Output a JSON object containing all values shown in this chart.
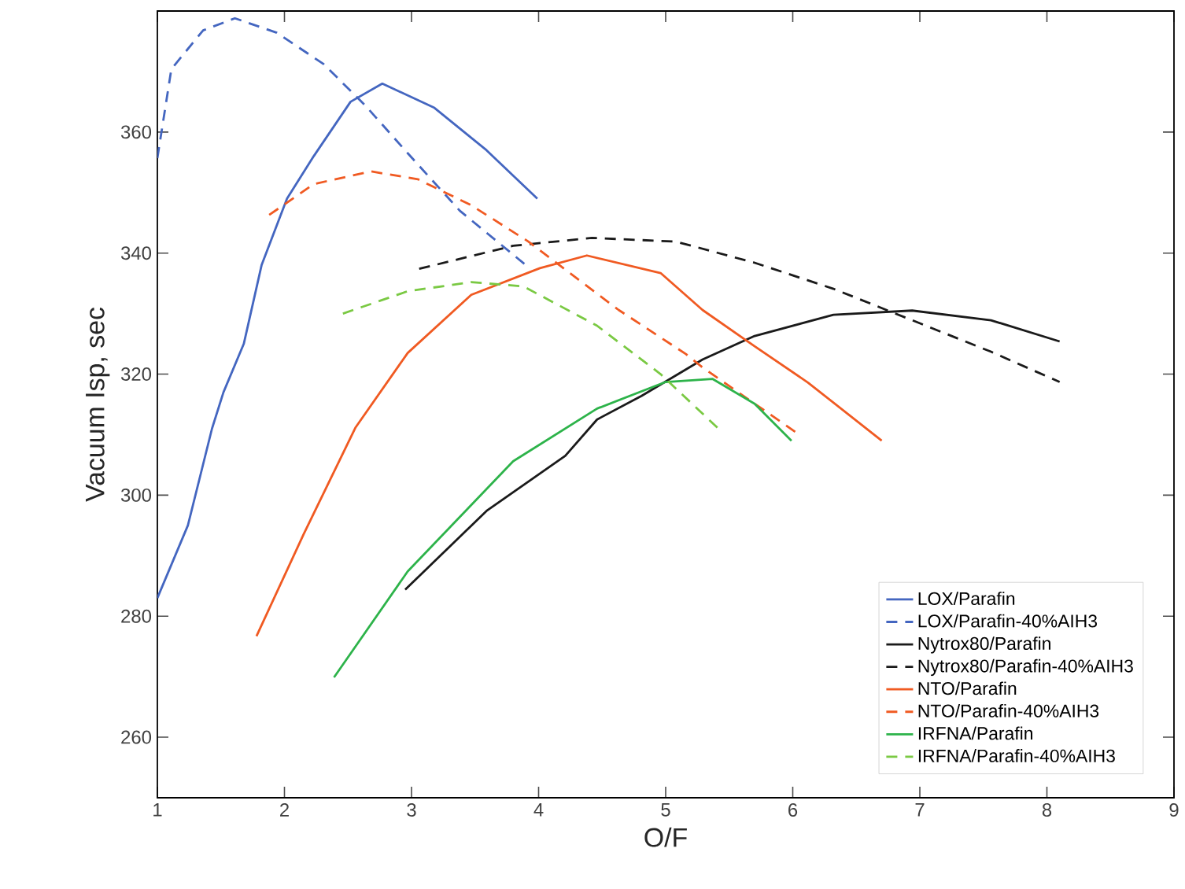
{
  "chart_data": {
    "type": "line",
    "xlabel": "O/F",
    "ylabel": "Vacuum Isp, sec",
    "xlim": [
      1,
      9
    ],
    "ylim": [
      250,
      380
    ],
    "xticks": [
      1,
      2,
      3,
      4,
      5,
      6,
      7,
      8,
      9
    ],
    "yticks": [
      260,
      280,
      300,
      320,
      340,
      360
    ],
    "grid": false,
    "legend": "bottom right",
    "marker": "none",
    "series": [
      {
        "name": "LOX/Parafin",
        "color": "#4466c0",
        "line_style": "solid",
        "x": [
          1.0,
          1.24,
          1.43,
          1.52,
          1.68,
          1.82,
          2.02,
          2.23,
          2.52,
          2.77,
          3.18,
          3.59,
          3.99
        ],
        "values": [
          283,
          295,
          311,
          317,
          325,
          338,
          349,
          356,
          365,
          368,
          364,
          357,
          349
        ]
      },
      {
        "name": "LOX/Parafin-40%AIH3",
        "color": "#4466c0",
        "line_style": "dashed",
        "x": [
          1.0,
          1.11,
          1.36,
          1.61,
          1.94,
          2.31,
          2.64,
          2.97,
          3.38,
          3.9
        ],
        "values": [
          355.7,
          370.4,
          376.8,
          378.8,
          376.4,
          371.2,
          364.3,
          356.5,
          347,
          338
        ]
      },
      {
        "name": "Nytrox80/Parafin",
        "color": "#1a1a1a",
        "line_style": "solid",
        "x": [
          2.95,
          3.59,
          4.21,
          4.46,
          4.81,
          5.29,
          5.7,
          6.32,
          6.94,
          7.56,
          8.1
        ],
        "values": [
          284.4,
          297.4,
          306.5,
          312.5,
          316.4,
          322.4,
          326.3,
          329.8,
          330.5,
          328.9,
          325.4
        ]
      },
      {
        "name": "Nytrox80/Parafin-40%AIH3",
        "color": "#1a1a1a",
        "line_style": "dashed",
        "x": [
          3.06,
          3.8,
          4.42,
          5.08,
          5.7,
          6.32,
          6.94,
          7.56,
          8.1
        ],
        "values": [
          337.4,
          341.2,
          342.5,
          341.9,
          338.4,
          334.1,
          328.9,
          323.7,
          318.7
        ]
      },
      {
        "name": "NTO/Parafin",
        "color": "#f05a22",
        "line_style": "solid",
        "x": [
          1.78,
          2.15,
          2.56,
          2.97,
          3.47,
          4.01,
          4.38,
          4.96,
          5.29,
          5.7,
          6.12,
          6.7
        ],
        "values": [
          276.7,
          293.5,
          311.2,
          323.5,
          333.1,
          337.5,
          339.6,
          336.7,
          330.6,
          324.6,
          318.6,
          309
        ]
      },
      {
        "name": "NTO/Parafin-40%AIH3",
        "color": "#f05a22",
        "line_style": "dashed",
        "x": [
          1.88,
          2.23,
          2.68,
          3.05,
          3.47,
          3.92,
          4.63,
          5.16,
          5.29,
          6.03
        ],
        "values": [
          346.3,
          351.4,
          353.5,
          352.2,
          347.9,
          341.9,
          330.6,
          323.3,
          321.1,
          310.3
        ]
      },
      {
        "name": "IRFNA/Parafin",
        "color": "#2db34a",
        "line_style": "solid",
        "x": [
          2.39,
          2.97,
          3.8,
          4.46,
          5.0,
          5.37,
          5.7,
          5.99
        ],
        "values": [
          269.9,
          287.4,
          305.6,
          314.3,
          318.7,
          319.2,
          315.1,
          309
        ]
      },
      {
        "name": "IRFNA/Parafin-40%AIH3",
        "color": "#7ac943",
        "line_style": "dashed",
        "x": [
          2.46,
          2.97,
          3.47,
          3.88,
          4.46,
          4.96,
          5.45
        ],
        "values": [
          330,
          333.7,
          335.2,
          334.5,
          328,
          320,
          310.3
        ]
      }
    ]
  }
}
